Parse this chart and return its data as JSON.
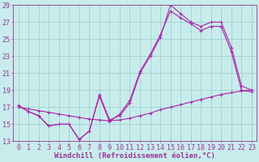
{
  "bg_color": "#c8ecec",
  "grid_color": "#a0d0d0",
  "line_color": "#aa22aa",
  "xlabel": "Windchill (Refroidissement éolien,°C)",
  "xlim": [
    -0.5,
    23.5
  ],
  "ylim": [
    13,
    29
  ],
  "yticks": [
    13,
    15,
    17,
    19,
    21,
    23,
    25,
    27,
    29
  ],
  "xticks": [
    0,
    1,
    2,
    3,
    4,
    5,
    6,
    7,
    8,
    9,
    10,
    11,
    12,
    13,
    14,
    15,
    16,
    17,
    18,
    19,
    20,
    21,
    22,
    23
  ],
  "line1_x": [
    0,
    1,
    2,
    3,
    4,
    5,
    6,
    7,
    8,
    9,
    10,
    11,
    12,
    13,
    14,
    15,
    16,
    17,
    18,
    19,
    20,
    21,
    22,
    23
  ],
  "line1_y": [
    17.2,
    16.5,
    16.0,
    14.8,
    15.0,
    15.0,
    13.2,
    14.2,
    18.5,
    15.5,
    16.0,
    17.5,
    21.0,
    23.0,
    25.2,
    29.0,
    28.0,
    27.0,
    26.5,
    27.0,
    27.0,
    24.0,
    19.5,
    19.0
  ],
  "line2_x": [
    0,
    1,
    2,
    3,
    4,
    5,
    6,
    7,
    8,
    9,
    10,
    11,
    12,
    13,
    14,
    15,
    16,
    17,
    18,
    19,
    20,
    21,
    22,
    23
  ],
  "line2_y": [
    17.2,
    16.5,
    16.0,
    14.8,
    15.0,
    15.0,
    13.2,
    14.2,
    18.3,
    15.3,
    16.2,
    17.8,
    21.2,
    23.2,
    25.5,
    28.3,
    27.5,
    26.8,
    26.0,
    26.5,
    26.5,
    23.5,
    19.0,
    18.8
  ],
  "line3_x": [
    0,
    1,
    2,
    3,
    4,
    5,
    6,
    7,
    8,
    9,
    10,
    11,
    12,
    13,
    14,
    15,
    16,
    17,
    18,
    19,
    20,
    21,
    22,
    23
  ],
  "line3_y": [
    17.0,
    16.8,
    16.6,
    16.4,
    16.2,
    16.0,
    15.8,
    15.6,
    15.5,
    15.4,
    15.5,
    15.7,
    16.0,
    16.3,
    16.7,
    17.0,
    17.3,
    17.6,
    17.9,
    18.2,
    18.5,
    18.7,
    18.9,
    19.0
  ],
  "font_color": "#993399",
  "font_size_label": 6.5,
  "font_size_tick": 6.0
}
